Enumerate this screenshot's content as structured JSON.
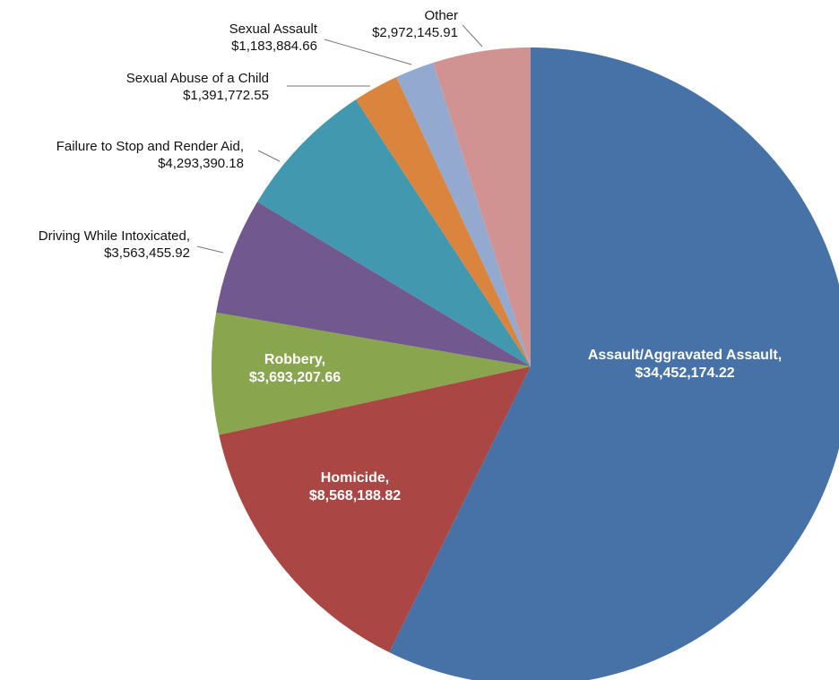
{
  "chart_data": {
    "type": "pie",
    "title": "",
    "start_angle_deg": 0,
    "direction": "clockwise",
    "slices": [
      {
        "label": "Assault/Aggravated Assault,",
        "value": 34452174.22,
        "value_text": "$34,452,174.22",
        "color": "#4672A8",
        "label_placement": "inside"
      },
      {
        "label": "Homicide,",
        "value": 8568188.82,
        "value_text": "$8,568,188.82",
        "color": "#AA4643",
        "label_placement": "inside"
      },
      {
        "label": "Robbery,",
        "value": 3693207.66,
        "value_text": "$3,693,207.66",
        "color": "#89A54E",
        "label_placement": "inside"
      },
      {
        "label": "Driving While Intoxicated,",
        "value": 3563455.92,
        "value_text": "$3,563,455.92",
        "color": "#71588F",
        "label_placement": "outside"
      },
      {
        "label": "Failure to Stop and Render Aid,",
        "value": 4293390.18,
        "value_text": "$4,293,390.18",
        "color": "#4198AF",
        "label_placement": "outside"
      },
      {
        "label": "Sexual Abuse of a Child",
        "value": 1391772.55,
        "value_text": "$1,391,772.55",
        "color": "#DB843D",
        "label_placement": "outside"
      },
      {
        "label": "Sexual Assault",
        "value": 1183884.66,
        "value_text": "$1,183,884.66",
        "color": "#93A9CF",
        "label_placement": "outside"
      },
      {
        "label": "Other",
        "value": 2972145.91,
        "value_text": "$2,972,145.91",
        "color": "#D19392",
        "label_placement": "outside"
      }
    ]
  }
}
